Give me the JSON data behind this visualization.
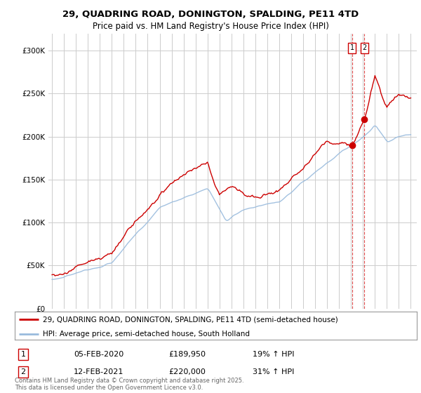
{
  "title": "29, QUADRING ROAD, DONINGTON, SPALDING, PE11 4TD",
  "subtitle": "Price paid vs. HM Land Registry's House Price Index (HPI)",
  "ylim": [
    0,
    320000
  ],
  "xlim": [
    1994.7,
    2025.5
  ],
  "yticks": [
    0,
    50000,
    100000,
    150000,
    200000,
    250000,
    300000
  ],
  "ytick_labels": [
    "£0",
    "£50K",
    "£100K",
    "£150K",
    "£200K",
    "£250K",
    "£300K"
  ],
  "xticks": [
    1995,
    1996,
    1997,
    1998,
    1999,
    2000,
    2001,
    2002,
    2003,
    2004,
    2005,
    2006,
    2007,
    2008,
    2009,
    2010,
    2011,
    2012,
    2013,
    2014,
    2015,
    2016,
    2017,
    2018,
    2019,
    2020,
    2021,
    2022,
    2023,
    2024,
    2025
  ],
  "background_color": "#ffffff",
  "grid_color": "#cccccc",
  "red_color": "#cc0000",
  "blue_color": "#99bbdd",
  "sale1_x": 2020.1,
  "sale1_y": 189950,
  "sale2_x": 2021.11,
  "sale2_y": 220000,
  "legend_red": "29, QUADRING ROAD, DONINGTON, SPALDING, PE11 4TD (semi-detached house)",
  "legend_blue": "HPI: Average price, semi-detached house, South Holland",
  "table_row1": [
    "1",
    "05-FEB-2020",
    "£189,950",
    "19% ↑ HPI"
  ],
  "table_row2": [
    "2",
    "12-FEB-2021",
    "£220,000",
    "31% ↑ HPI"
  ],
  "footer": "Contains HM Land Registry data © Crown copyright and database right 2025.\nThis data is licensed under the Open Government Licence v3.0.",
  "title_fontsize": 9.5,
  "subtitle_fontsize": 8.5,
  "tick_fontsize": 7.5,
  "legend_fontsize": 7.5
}
